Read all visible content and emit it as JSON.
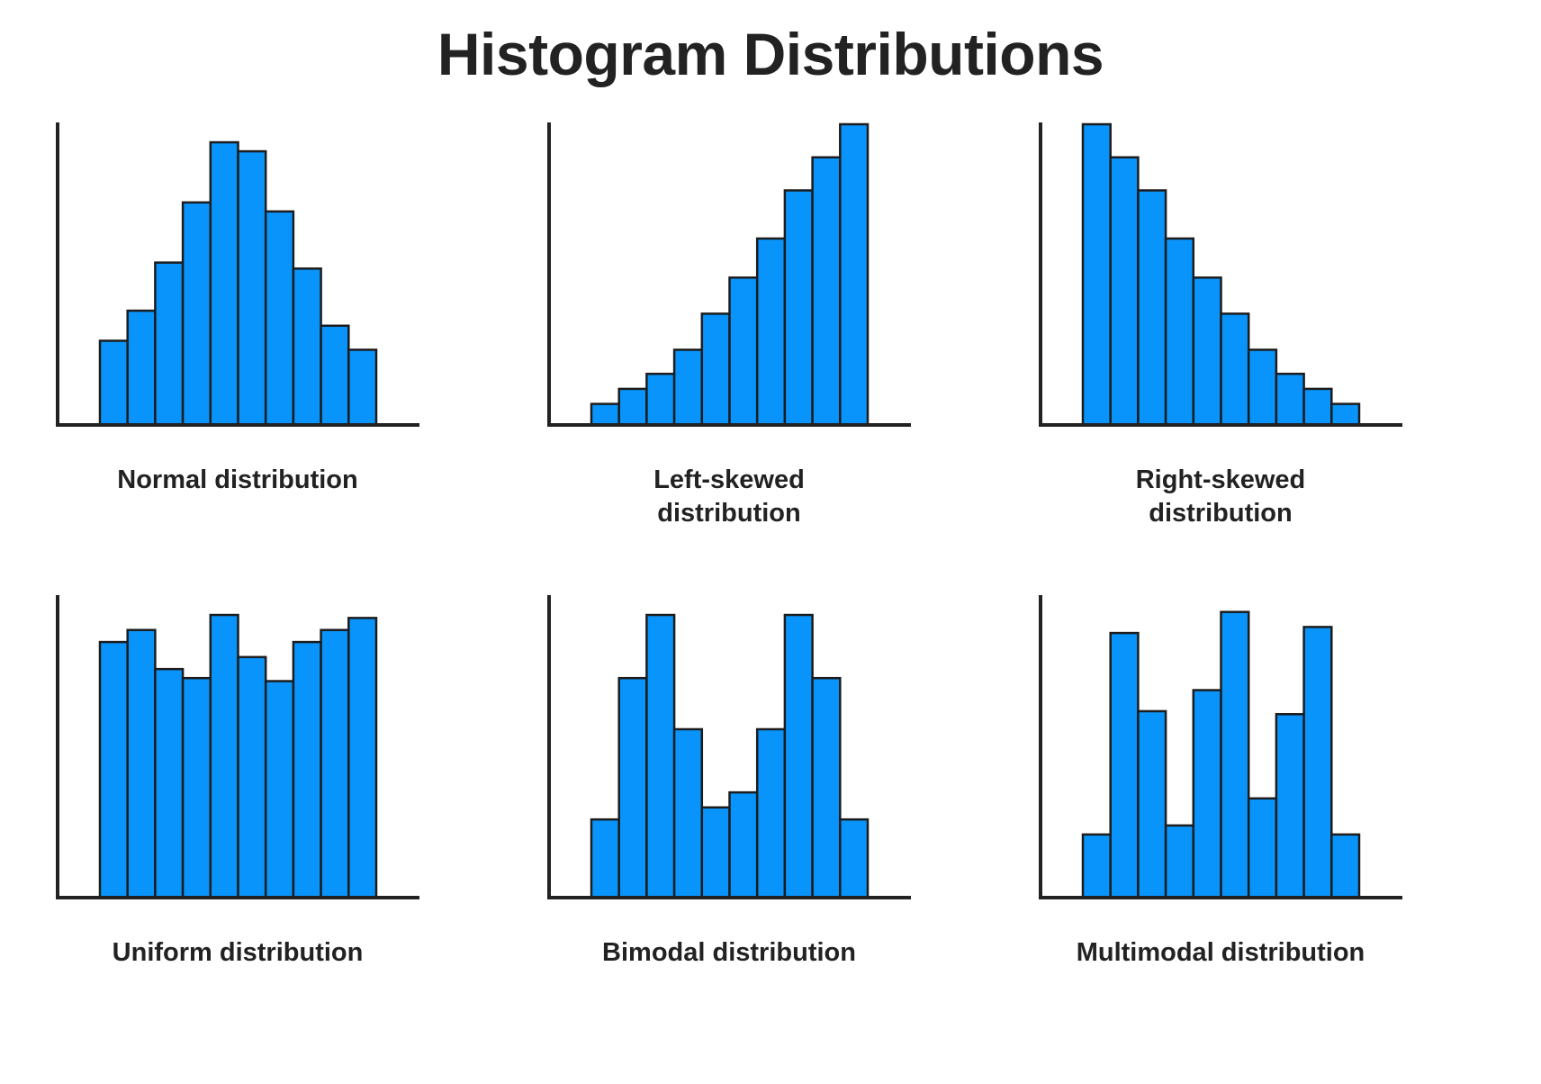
{
  "title": "Histogram Distributions",
  "colors": {
    "bar_fill": "#0894fb",
    "bar_stroke": "#1c1c1c",
    "axis": "#222222"
  },
  "chart_data": [
    {
      "id": "normal",
      "type": "bar",
      "caption_lines": [
        "Normal distribution"
      ],
      "ylim": [
        0,
        100
      ],
      "values": [
        28,
        38,
        54,
        74,
        94,
        91,
        71,
        52,
        33,
        25
      ]
    },
    {
      "id": "left-skewed",
      "type": "bar",
      "caption_lines": [
        "Left-skewed",
        "distribution"
      ],
      "ylim": [
        0,
        100
      ],
      "values": [
        7,
        12,
        17,
        25,
        37,
        49,
        62,
        78,
        89,
        100
      ]
    },
    {
      "id": "right-skewed",
      "type": "bar",
      "caption_lines": [
        "Right-skewed",
        "distribution"
      ],
      "ylim": [
        0,
        100
      ],
      "values": [
        100,
        89,
        78,
        62,
        49,
        37,
        25,
        17,
        12,
        7
      ]
    },
    {
      "id": "uniform",
      "type": "bar",
      "caption_lines": [
        "Uniform distribution"
      ],
      "ylim": [
        0,
        100
      ],
      "values": [
        85,
        89,
        76,
        73,
        94,
        80,
        72,
        85,
        89,
        93
      ]
    },
    {
      "id": "bimodal",
      "type": "bar",
      "caption_lines": [
        "Bimodal distribution"
      ],
      "ylim": [
        0,
        100
      ],
      "values": [
        26,
        73,
        94,
        56,
        30,
        35,
        56,
        94,
        73,
        26
      ]
    },
    {
      "id": "multimodal",
      "type": "bar",
      "caption_lines": [
        "Multimodal distribution"
      ],
      "ylim": [
        0,
        100
      ],
      "values": [
        21,
        88,
        62,
        24,
        69,
        95,
        33,
        61,
        90,
        21
      ]
    }
  ]
}
